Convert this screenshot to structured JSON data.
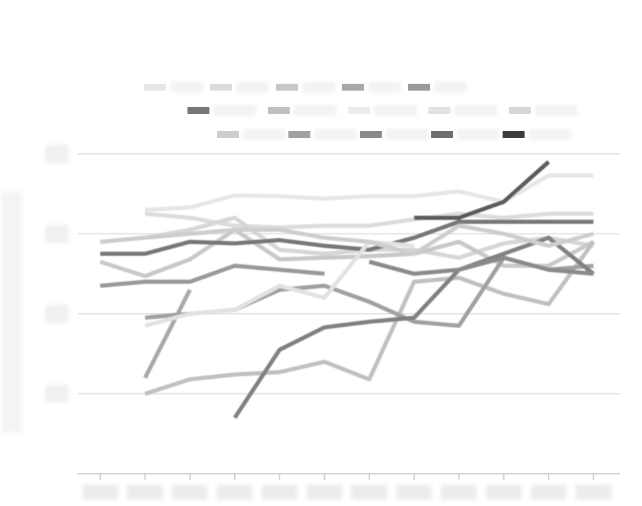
{
  "title_lines": [
    "",
    ""
  ],
  "ylabel": "",
  "chart_data": {
    "type": "line",
    "title": "",
    "xlabel": "",
    "ylabel": "",
    "x": [
      2000,
      2001,
      2002,
      2003,
      2004,
      2005,
      2006,
      2007,
      2008,
      2009,
      2010,
      2011
    ],
    "xtick_labels": [],
    "ylim": [
      0,
      4
    ],
    "yticks": [
      1,
      2,
      3,
      4
    ],
    "grid": true,
    "legend_placement": "top",
    "series": [
      {
        "color": "#e6e6e6",
        "values": [
          null,
          3.3,
          3.33,
          3.48,
          3.47,
          3.44,
          3.47,
          3.47,
          3.53,
          3.4,
          3.73,
          3.73
        ]
      },
      {
        "color": "#dcdcdc",
        "values": [
          null,
          3.25,
          3.2,
          3.1,
          3.08,
          3.1,
          3.1,
          3.18,
          3.25,
          3.2,
          3.25,
          3.25
        ]
      },
      {
        "color": "#d6d6d6",
        "values": [
          2.9,
          2.95,
          3.05,
          3.2,
          2.8,
          2.75,
          2.8,
          2.8,
          2.7,
          2.88,
          2.95,
          2.85
        ]
      },
      {
        "color": "#c8c8c8",
        "values": [
          2.65,
          2.47,
          2.68,
          3.05,
          2.68,
          2.7,
          2.72,
          2.75,
          2.9,
          2.6,
          2.6,
          2.9
        ]
      },
      {
        "color": "#c0c0c0",
        "values": [
          null,
          1.0,
          1.18,
          1.24,
          1.27,
          1.4,
          1.18,
          2.4,
          2.45,
          2.25,
          2.12,
          2.9
        ]
      },
      {
        "color": "#a8a8a8",
        "values": [
          null,
          1.2,
          2.3,
          null,
          null,
          null,
          null,
          null,
          null,
          null,
          null,
          null
        ]
      },
      {
        "color": "#a0a0a0",
        "values": [
          null,
          1.95,
          2.0,
          2.05,
          2.3,
          2.35,
          2.15,
          1.9,
          1.85,
          2.7,
          2.55,
          2.6
        ]
      },
      {
        "color": "#999999",
        "values": [
          2.35,
          2.4,
          2.4,
          2.6,
          2.55,
          2.5,
          null,
          null,
          null,
          null,
          null,
          null
        ]
      },
      {
        "color": "#808080",
        "values": [
          null,
          null,
          null,
          0.7,
          1.55,
          1.83,
          1.9,
          1.95,
          2.55,
          2.75,
          2.95,
          2.5
        ]
      },
      {
        "color": "#8a8a8a",
        "values": [
          null,
          null,
          null,
          null,
          null,
          null,
          2.65,
          2.5,
          2.55,
          2.7,
          2.55,
          2.5
        ]
      },
      {
        "color": "#777777",
        "values": [
          2.75,
          2.75,
          2.9,
          2.88,
          2.92,
          2.85,
          2.8,
          2.95,
          3.15,
          3.15,
          3.15,
          3.15
        ]
      },
      {
        "color": "#5a5a5a",
        "values": [
          null,
          null,
          null,
          null,
          null,
          null,
          null,
          3.2,
          3.2,
          3.4,
          3.9,
          null
        ]
      },
      {
        "color": "#e2e2e2",
        "values": [
          null,
          1.85,
          2.0,
          2.05,
          2.35,
          2.2,
          2.9,
          2.85,
          null,
          null,
          null,
          null
        ]
      },
      {
        "color": "#cdcdcd",
        "values": [
          2.9,
          2.95,
          3.0,
          3.05,
          3.05,
          2.95,
          2.9,
          2.75,
          3.1,
          3.0,
          2.85,
          3.0
        ]
      }
    ],
    "legend_rows": [
      [
        {
          "color": "#e6e6e6"
        },
        {
          "color": "#dcdcdc"
        },
        {
          "color": "#c8c8c8"
        },
        {
          "color": "#a8a8a8"
        },
        {
          "color": "#999999"
        }
      ],
      [
        {
          "color": "#777777"
        },
        {
          "color": "#c0c0c0"
        },
        {
          "color": "#ececec"
        },
        {
          "color": "#e2e2e2"
        },
        {
          "color": "#d6d6d6"
        }
      ],
      [
        {
          "color": "#cdcdcd"
        },
        {
          "color": "#a0a0a0"
        },
        {
          "color": "#8a8a8a"
        },
        {
          "color": "#6e6e6e"
        },
        {
          "color": "#3c3c3c"
        }
      ]
    ]
  }
}
